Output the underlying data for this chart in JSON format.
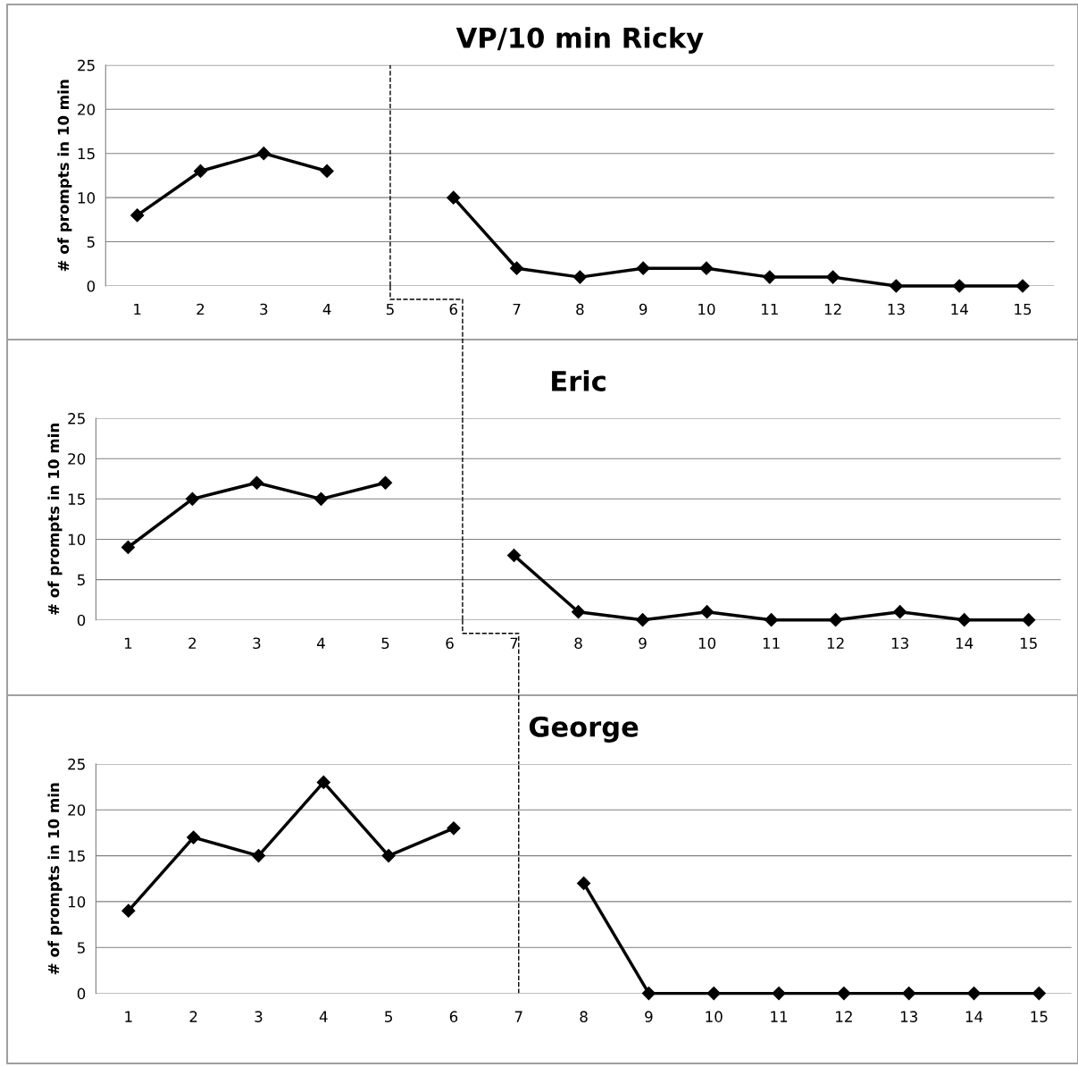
{
  "chart_data": [
    {
      "type": "line",
      "title": "VP/10 min Ricky",
      "ylabel": "# of prompts in 10 min",
      "x": [
        1,
        2,
        3,
        4,
        5,
        6,
        7,
        8,
        9,
        10,
        11,
        12,
        13,
        14,
        15
      ],
      "series": [
        {
          "color": "#000000",
          "values": [
            8,
            13,
            15,
            13,
            null,
            10,
            2,
            1,
            2,
            2,
            1,
            1,
            0,
            0,
            0
          ]
        }
      ],
      "xlim": [
        0.5,
        15.5
      ],
      "xticks": [
        1,
        2,
        3,
        4,
        5,
        6,
        7,
        8,
        9,
        10,
        11,
        12,
        13,
        14,
        15
      ],
      "ylim": [
        0,
        25
      ],
      "yticks": [
        0,
        5,
        10,
        15,
        20,
        25
      ],
      "grid": "y",
      "marker": "diamond",
      "line_style": "solid",
      "ref_lines": [
        {
          "axis": "x",
          "value": 5,
          "color": "#000000",
          "line_style": "dashed"
        }
      ]
    },
    {
      "type": "line",
      "title": "Eric",
      "ylabel": "# of prompts in 10 min",
      "x": [
        1,
        2,
        3,
        4,
        5,
        6,
        7,
        8,
        9,
        10,
        11,
        12,
        13,
        14,
        15
      ],
      "series": [
        {
          "color": "#000000",
          "values": [
            9,
            15,
            17,
            15,
            17,
            null,
            8,
            1,
            0,
            1,
            0,
            0,
            1,
            0,
            0
          ]
        }
      ],
      "xlim": [
        0.5,
        15.5
      ],
      "xticks": [
        1,
        2,
        3,
        4,
        5,
        6,
        7,
        8,
        9,
        10,
        11,
        12,
        13,
        14,
        15
      ],
      "ylim": [
        0,
        25
      ],
      "yticks": [
        0,
        5,
        10,
        15,
        20,
        25
      ],
      "grid": "y",
      "marker": "diamond",
      "line_style": "solid",
      "ref_lines": [
        {
          "axis": "x",
          "value": 6.2,
          "color": "#000000",
          "line_style": "dashed"
        }
      ]
    },
    {
      "type": "line",
      "title": "George",
      "ylabel": "# of prompts in 10 min",
      "x": [
        1,
        2,
        3,
        4,
        5,
        6,
        7,
        8,
        9,
        10,
        11,
        12,
        13,
        14,
        15
      ],
      "series": [
        {
          "color": "#000000",
          "values": [
            9,
            17,
            15,
            23,
            15,
            18,
            null,
            12,
            0,
            0,
            0,
            0,
            0,
            0,
            0
          ]
        }
      ],
      "xlim": [
        0.5,
        15.5
      ],
      "xticks": [
        1,
        2,
        3,
        4,
        5,
        6,
        7,
        8,
        9,
        10,
        11,
        12,
        13,
        14,
        15
      ],
      "ylim": [
        0,
        25
      ],
      "yticks": [
        0,
        5,
        10,
        15,
        20,
        25
      ],
      "grid": "y",
      "marker": "diamond",
      "line_style": "solid",
      "ref_lines": [
        {
          "axis": "x",
          "value": 7,
          "color": "#000000",
          "line_style": "dashed"
        }
      ]
    }
  ]
}
